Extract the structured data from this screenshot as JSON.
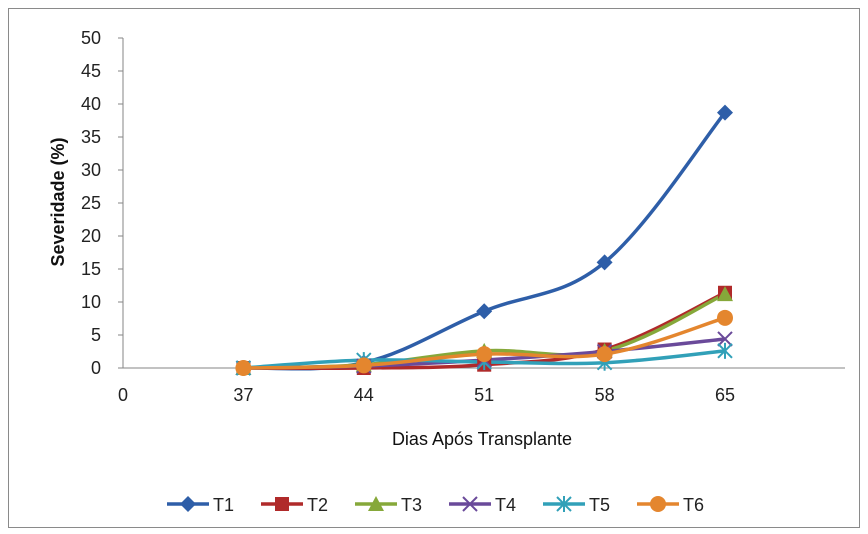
{
  "chart_data": {
    "type": "line",
    "title": "",
    "xlabel": "Dias Após Transplante",
    "ylabel": "Severidade (%)",
    "x_tick_labels": [
      "0",
      "37",
      "44",
      "51",
      "58",
      "65"
    ],
    "y_tick_labels": [
      "0",
      "5",
      "10",
      "15",
      "20",
      "25",
      "30",
      "35",
      "40",
      "45",
      "50"
    ],
    "ylim": [
      0,
      50
    ],
    "grid": false,
    "legend_position": "bottom",
    "categories": [
      "37",
      "44",
      "51",
      "58",
      "65"
    ],
    "series": [
      {
        "name": "T1",
        "color": "#2E5EA8",
        "marker": "diamond",
        "values": [
          0,
          0.8,
          8.6,
          16,
          38.7
        ]
      },
      {
        "name": "T2",
        "color": "#B02A2A",
        "marker": "square",
        "values": [
          0,
          0,
          0.5,
          2.8,
          11.4
        ]
      },
      {
        "name": "T3",
        "color": "#86A83A",
        "marker": "triangle",
        "values": [
          0,
          0.5,
          2.6,
          2.6,
          11.2
        ]
      },
      {
        "name": "T4",
        "color": "#6A4A9A",
        "marker": "x",
        "values": [
          0,
          0.3,
          1.2,
          2.5,
          4.4
        ]
      },
      {
        "name": "T5",
        "color": "#31A0B8",
        "marker": "asterisk",
        "values": [
          0,
          1.2,
          0.9,
          0.8,
          2.6
        ]
      },
      {
        "name": "T6",
        "color": "#E4862E",
        "marker": "circle",
        "values": [
          0,
          0.4,
          2.1,
          2.1,
          7.6
        ]
      }
    ]
  }
}
